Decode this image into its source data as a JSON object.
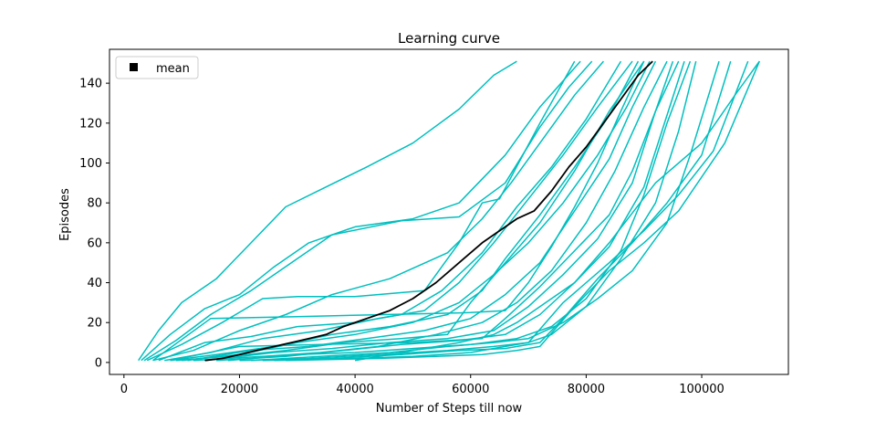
{
  "chart_data": {
    "type": "line",
    "title": "Learning curve",
    "xlabel": "Number of Steps till now",
    "ylabel": "Episodes",
    "xlim": [
      -2500,
      115000
    ],
    "ylim": [
      -6,
      157
    ],
    "xticks": [
      0,
      20000,
      40000,
      60000,
      80000,
      100000
    ],
    "yticks": [
      0,
      20,
      40,
      60,
      80,
      100,
      120,
      140
    ],
    "grid": false,
    "legend": {
      "position": "top-left",
      "entries": [
        {
          "label": "mean",
          "marker": "square",
          "color": "#000000"
        }
      ]
    },
    "colors": {
      "runs": "#00bfbf",
      "mean": "#000000"
    },
    "series": [
      {
        "color": "#00bfbf",
        "x": [
          2500,
          6000,
          10000,
          16000,
          22000,
          28000,
          35000,
          42000,
          50000,
          58000,
          64000,
          68000
        ],
        "y": [
          1,
          16,
          30,
          42,
          60,
          78,
          88,
          98,
          110,
          127,
          144,
          151
        ]
      },
      {
        "color": "#00bfbf",
        "x": [
          3000,
          8000,
          14000,
          20000,
          26000,
          32000,
          40000,
          50000,
          58000,
          66000,
          72000,
          79000
        ],
        "y": [
          1,
          14,
          27,
          34,
          48,
          60,
          68,
          72,
          80,
          104,
          128,
          151
        ]
      },
      {
        "color": "#00bfbf",
        "x": [
          3500,
          9000,
          15000,
          22000,
          30000,
          36000,
          48000,
          58000,
          66000,
          72000,
          77000,
          81000
        ],
        "y": [
          1,
          11,
          24,
          36,
          52,
          64,
          71,
          73,
          90,
          118,
          138,
          151
        ]
      },
      {
        "color": "#00bfbf",
        "x": [
          4000,
          10000,
          17000,
          24000,
          30000,
          40000,
          52000,
          58000,
          62000,
          65000,
          72000,
          78000
        ],
        "y": [
          1,
          9,
          20,
          32,
          33,
          33,
          36,
          60,
          80,
          82,
          120,
          151
        ]
      },
      {
        "color": "#00bfbf",
        "x": [
          5000,
          12000,
          20000,
          28000,
          36000,
          46000,
          56000,
          62000,
          67000,
          72000,
          78000,
          83000
        ],
        "y": [
          1,
          6,
          16,
          24,
          34,
          42,
          55,
          72,
          90,
          110,
          134,
          151
        ]
      },
      {
        "color": "#00bfbf",
        "x": [
          6000,
          14000,
          22000,
          30000,
          40000,
          48000,
          55000,
          62000,
          68000,
          74000,
          80000,
          86000
        ],
        "y": [
          1,
          10,
          13,
          18,
          20,
          24,
          36,
          55,
          78,
          98,
          122,
          151
        ]
      },
      {
        "color": "#00bfbf",
        "x": [
          7000,
          15000,
          24000,
          34000,
          44000,
          52000,
          58000,
          64000,
          70000,
          76000,
          82000,
          88000
        ],
        "y": [
          1,
          5,
          12,
          16,
          22,
          26,
          40,
          60,
          82,
          104,
          128,
          151
        ]
      },
      {
        "color": "#00bfbf",
        "x": [
          8000,
          16000,
          26000,
          36000,
          46000,
          56000,
          62000,
          66000,
          72000,
          78000,
          84000,
          89000
        ],
        "y": [
          1,
          4,
          8,
          14,
          18,
          24,
          36,
          52,
          74,
          98,
          124,
          151
        ]
      },
      {
        "color": "#00bfbf",
        "x": [
          9000,
          18000,
          28000,
          38000,
          48000,
          56000,
          60000,
          66000,
          72000,
          78000,
          84000,
          90000
        ],
        "y": [
          1,
          3,
          6,
          10,
          12,
          14,
          30,
          50,
          70,
          96,
          126,
          151
        ]
      },
      {
        "color": "#00bfbf",
        "x": [
          10000,
          20000,
          30000,
          40000,
          50000,
          58000,
          64000,
          70000,
          76000,
          82000,
          87000,
          91000
        ],
        "y": [
          1,
          4,
          10,
          14,
          20,
          30,
          44,
          60,
          80,
          104,
          128,
          151
        ]
      },
      {
        "color": "#00bfbf",
        "x": [
          11000,
          22000,
          32000,
          42000,
          52000,
          60000,
          66000,
          72000,
          78000,
          84000,
          88000,
          92000
        ],
        "y": [
          1,
          6,
          8,
          12,
          16,
          22,
          34,
          50,
          76,
          102,
          128,
          151
        ]
      },
      {
        "color": "#00bfbf",
        "x": [
          12000,
          24000,
          34000,
          44000,
          54000,
          62000,
          68000,
          74000,
          80000,
          85000,
          90000,
          94000
        ],
        "y": [
          1,
          3,
          5,
          8,
          14,
          20,
          30,
          46,
          70,
          96,
          128,
          151
        ]
      },
      {
        "color": "#00bfbf",
        "x": [
          14000,
          26000,
          36000,
          46000,
          56000,
          64000,
          70000,
          76000,
          82000,
          88000,
          92000,
          95000
        ],
        "y": [
          1,
          5,
          7,
          10,
          12,
          16,
          28,
          44,
          62,
          90,
          126,
          151
        ]
      },
      {
        "color": "#00bfbf",
        "x": [
          16000,
          28000,
          38000,
          48000,
          58000,
          66000,
          72000,
          78000,
          84000,
          90000,
          94000,
          97000
        ],
        "y": [
          1,
          3,
          6,
          9,
          11,
          14,
          24,
          40,
          58,
          88,
          124,
          151
        ]
      },
      {
        "color": "#00bfbf",
        "x": [
          18000,
          30000,
          40000,
          50000,
          60000,
          68000,
          74000,
          80000,
          86000,
          90000,
          94000,
          98000
        ],
        "y": [
          1,
          4,
          5,
          7,
          9,
          12,
          18,
          32,
          56,
          84,
          120,
          151
        ]
      },
      {
        "color": "#00bfbf",
        "x": [
          20000,
          32000,
          44000,
          56000,
          64000,
          70000,
          74000,
          80000,
          86000,
          92000,
          96000,
          99000
        ],
        "y": [
          1,
          2,
          4,
          6,
          8,
          10,
          14,
          28,
          52,
          80,
          116,
          151
        ]
      },
      {
        "color": "#00bfbf",
        "x": [
          22000,
          34000,
          46000,
          56000,
          64000,
          70000,
          76000,
          82000,
          88000,
          94000,
          98000,
          103000
        ],
        "y": [
          1,
          3,
          5,
          8,
          10,
          12,
          20,
          32,
          46,
          70,
          104,
          151
        ]
      },
      {
        "color": "#00bfbf",
        "x": [
          24000,
          36000,
          48000,
          58000,
          66000,
          72000,
          76000,
          82000,
          88000,
          94000,
          100000,
          105000
        ],
        "y": [
          1,
          2,
          4,
          6,
          7,
          10,
          22,
          42,
          60,
          80,
          104,
          151
        ]
      },
      {
        "color": "#00bfbf",
        "x": [
          26000,
          40000,
          50000,
          60000,
          66000,
          70000,
          76000,
          84000,
          90000,
          96000,
          102000,
          108000
        ],
        "y": [
          1,
          2,
          3,
          5,
          8,
          10,
          30,
          50,
          66,
          84,
          106,
          151
        ]
      },
      {
        "color": "#00bfbf",
        "x": [
          28000,
          44000,
          54000,
          62000,
          68000,
          72000,
          78000,
          84000,
          90000,
          96000,
          104000,
          110000
        ],
        "y": [
          1,
          2,
          3,
          4,
          6,
          8,
          28,
          46,
          60,
          76,
          110,
          151
        ]
      },
      {
        "color": "#00bfbf",
        "x": [
          40000,
          50000,
          58000,
          64000,
          68000,
          72000,
          78000,
          84000,
          92000,
          100000,
          106000,
          110000
        ],
        "y": [
          1,
          6,
          10,
          14,
          20,
          28,
          40,
          60,
          90,
          110,
          135,
          151
        ]
      },
      {
        "color": "#00bfbf",
        "x": [
          5000,
          15000,
          30000,
          45000,
          60000,
          66000,
          70000,
          74000,
          78000,
          82000,
          86000,
          90000
        ],
        "y": [
          1,
          22,
          23,
          24,
          25,
          26,
          40,
          58,
          78,
          100,
          126,
          151
        ]
      },
      {
        "color": "#00bfbf",
        "x": [
          8000,
          20000,
          34000,
          50000,
          62000,
          66000,
          72000,
          78000,
          84000,
          88000,
          92000,
          96000
        ],
        "y": [
          1,
          8,
          9,
          10,
          12,
          22,
          38,
          56,
          74,
          96,
          126,
          151
        ]
      },
      {
        "name": "mean",
        "color": "#000000",
        "x": [
          14000,
          17000,
          20000,
          23000,
          26000,
          29000,
          32000,
          35000,
          38000,
          42000,
          46000,
          50000,
          54000,
          58000,
          62000,
          65000,
          68000,
          71000,
          74000,
          77000,
          80000,
          83000,
          86000,
          89000,
          91500
        ],
        "y": [
          1,
          2,
          4,
          6,
          8,
          10,
          12,
          14,
          18,
          22,
          26,
          32,
          40,
          50,
          60,
          66,
          72,
          76,
          86,
          98,
          108,
          120,
          132,
          144,
          151
        ]
      }
    ]
  }
}
